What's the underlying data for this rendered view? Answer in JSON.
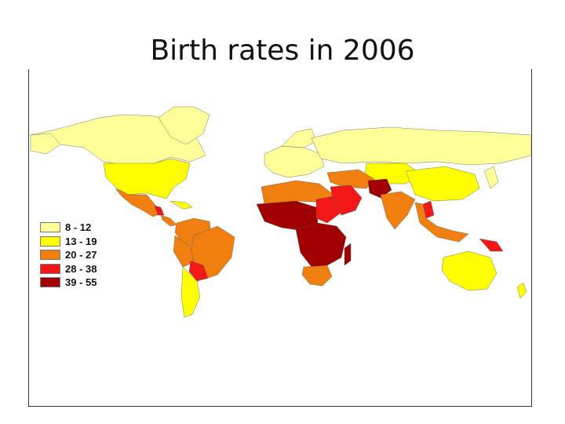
{
  "title": "Birth rates in 2006",
  "legend": [
    {
      "label": "8 - 12",
      "color": "#FFFF99"
    },
    {
      "label": "13 - 19",
      "color": "#FFFF00"
    },
    {
      "label": "20 - 27",
      "color": "#F07F0F"
    },
    {
      "label": "28 - 38",
      "color": "#F21818"
    },
    {
      "label": "39 - 55",
      "color": "#A00000"
    }
  ],
  "map": {
    "projection": "world choropleth",
    "regions": [
      {
        "name": "Canada & Greenland",
        "class": "8 - 12"
      },
      {
        "name": "United States",
        "class": "13 - 19"
      },
      {
        "name": "Mexico & Central America",
        "class": "20 - 27"
      },
      {
        "name": "Guatemala",
        "class": "28 - 38"
      },
      {
        "name": "Caribbean",
        "class": "13 - 19"
      },
      {
        "name": "Colombia / Venezuela / Peru",
        "class": "20 - 27"
      },
      {
        "name": "Brazil",
        "class": "20 - 27"
      },
      {
        "name": "Bolivia / Paraguay",
        "class": "28 - 38"
      },
      {
        "name": "Chile / Argentina",
        "class": "13 - 19"
      },
      {
        "name": "Europe",
        "class": "8 - 12"
      },
      {
        "name": "Russia",
        "class": "8 - 12"
      },
      {
        "name": "Central Asia",
        "class": "13 - 19"
      },
      {
        "name": "North Africa",
        "class": "20 - 27"
      },
      {
        "name": "West & Central Africa",
        "class": "39 - 55"
      },
      {
        "name": "East Africa",
        "class": "39 - 55"
      },
      {
        "name": "Southern Africa",
        "class": "20 - 27"
      },
      {
        "name": "Madagascar",
        "class": "39 - 55"
      },
      {
        "name": "Arabian Peninsula",
        "class": "28 - 38"
      },
      {
        "name": "Iran / Turkey",
        "class": "20 - 27"
      },
      {
        "name": "Afghanistan / Pakistan",
        "class": "39 - 55"
      },
      {
        "name": "India",
        "class": "20 - 27"
      },
      {
        "name": "China",
        "class": "13 - 19"
      },
      {
        "name": "Japan / Korea",
        "class": "8 - 12"
      },
      {
        "name": "Southeast Asia",
        "class": "20 - 27"
      },
      {
        "name": "Laos",
        "class": "28 - 38"
      },
      {
        "name": "Papua New Guinea",
        "class": "28 - 38"
      },
      {
        "name": "Australia",
        "class": "13 - 19"
      },
      {
        "name": "New Zealand",
        "class": "13 - 19"
      }
    ]
  }
}
